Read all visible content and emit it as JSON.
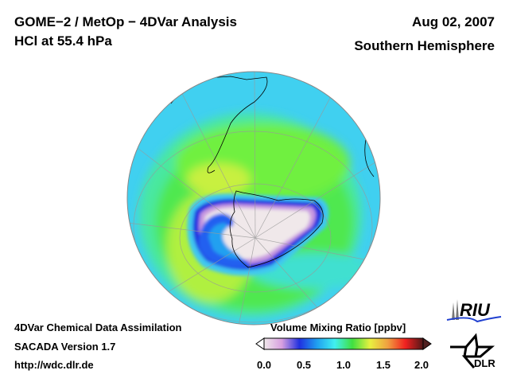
{
  "header": {
    "title": "GOME−2 / MetOp − 4DVar Analysis",
    "subtitle": "HCl at 55.4 hPa",
    "date": "Aug 02, 2007",
    "region": "Southern Hemisphere"
  },
  "footer": {
    "line1": "4DVar Chemical Data Assimilation",
    "line2": "SACADA Version 1.7",
    "line3": "http://wdc.dlr.de"
  },
  "colorbar": {
    "title": "Volume Mixing Ratio [ppbv]",
    "ticks": [
      "0.0",
      "0.5",
      "1.0",
      "1.5",
      "2.0"
    ],
    "range": [
      0.0,
      2.0
    ],
    "colors": [
      "#f0e8ea",
      "#d8a0e0",
      "#2030e0",
      "#20a0f0",
      "#40f0f0",
      "#40e040",
      "#e8f040",
      "#f0a040",
      "#f02020",
      "#501818"
    ]
  },
  "logos": {
    "riu": "RIU",
    "dlr": "DLR"
  }
}
